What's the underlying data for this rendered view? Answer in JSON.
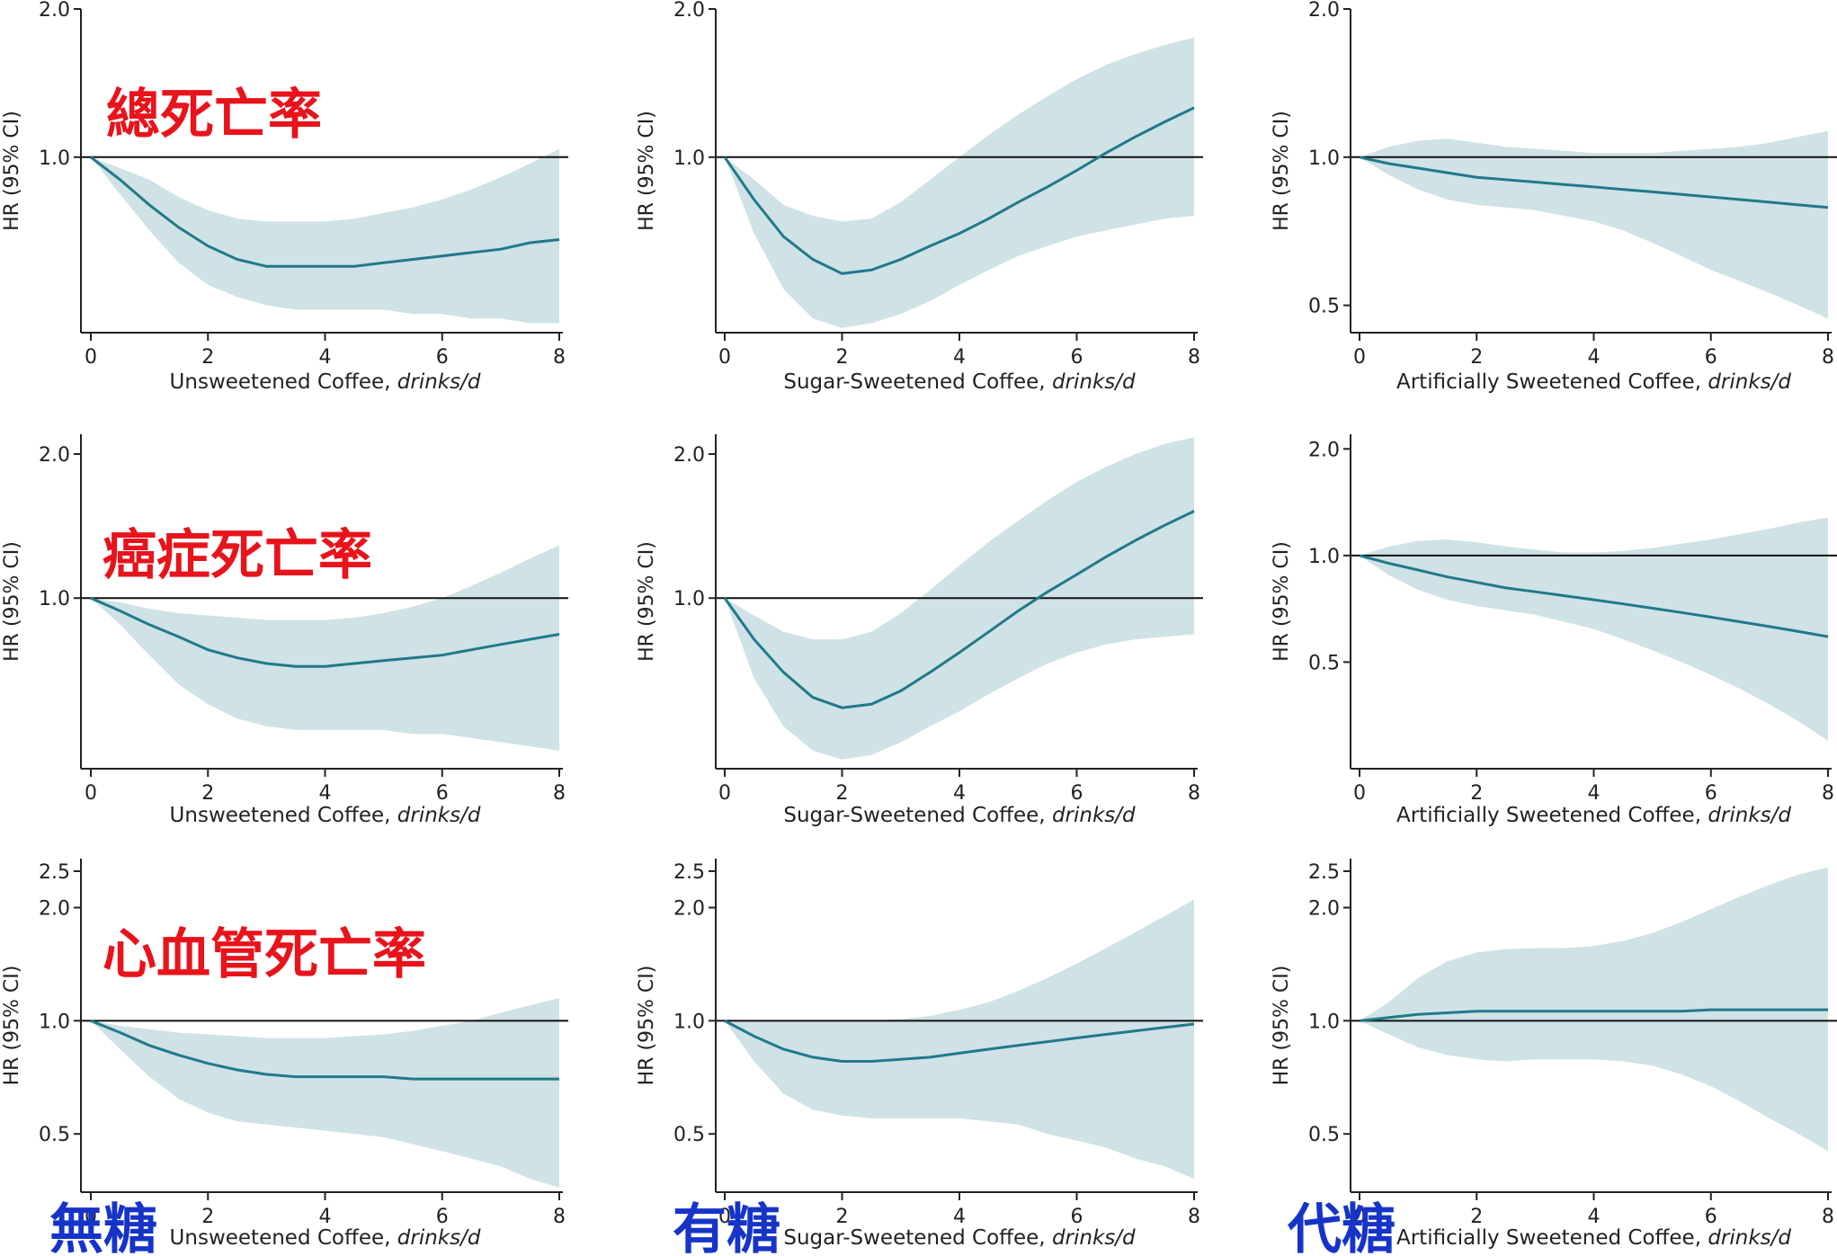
{
  "chart_data": [
    {
      "type": "area",
      "row": 0,
      "col": 0,
      "xlabel": "Unsweetened Coffee, ",
      "xunit": "drinks/d",
      "ylabel": "HR (95% CI)",
      "xlim": [
        0,
        8
      ],
      "ylim": [
        0.44,
        2.0
      ],
      "xticks": [
        0,
        2,
        4,
        6,
        8
      ],
      "yticks": [
        1.0,
        2.0
      ],
      "reference": 1.0,
      "x": [
        0,
        0.5,
        1,
        1.5,
        2,
        2.5,
        3,
        3.5,
        4,
        4.5,
        5,
        5.5,
        6,
        6.5,
        7,
        7.5,
        8
      ],
      "estimate": [
        1.0,
        0.9,
        0.8,
        0.72,
        0.66,
        0.62,
        0.6,
        0.6,
        0.6,
        0.6,
        0.61,
        0.62,
        0.63,
        0.64,
        0.65,
        0.67,
        0.68
      ],
      "lower": [
        1.0,
        0.84,
        0.71,
        0.61,
        0.55,
        0.52,
        0.5,
        0.49,
        0.49,
        0.49,
        0.49,
        0.48,
        0.48,
        0.47,
        0.47,
        0.46,
        0.46
      ],
      "upper": [
        1.0,
        0.95,
        0.9,
        0.83,
        0.78,
        0.75,
        0.74,
        0.74,
        0.74,
        0.75,
        0.77,
        0.79,
        0.82,
        0.86,
        0.91,
        0.97,
        1.04
      ]
    },
    {
      "type": "area",
      "row": 0,
      "col": 1,
      "xlabel": "Sugar-Sweetened Coffee, ",
      "xunit": "drinks/d",
      "ylabel": "HR (95% CI)",
      "xlim": [
        0,
        8
      ],
      "ylim": [
        0.44,
        2.0
      ],
      "xticks": [
        0,
        2,
        4,
        6,
        8
      ],
      "yticks": [
        1.0,
        2.0
      ],
      "reference": 1.0,
      "x": [
        0,
        0.5,
        1,
        1.5,
        2,
        2.5,
        3,
        3.5,
        4,
        4.5,
        5,
        5.5,
        6,
        6.5,
        7,
        7.5,
        8
      ],
      "estimate": [
        1.0,
        0.82,
        0.69,
        0.62,
        0.58,
        0.59,
        0.62,
        0.66,
        0.7,
        0.75,
        0.81,
        0.87,
        0.94,
        1.02,
        1.1,
        1.18,
        1.26
      ],
      "lower": [
        1.0,
        0.7,
        0.54,
        0.47,
        0.45,
        0.46,
        0.48,
        0.51,
        0.55,
        0.59,
        0.63,
        0.66,
        0.69,
        0.71,
        0.73,
        0.75,
        0.76
      ],
      "upper": [
        1.0,
        0.9,
        0.8,
        0.76,
        0.74,
        0.75,
        0.81,
        0.9,
        1.0,
        1.11,
        1.22,
        1.33,
        1.44,
        1.54,
        1.62,
        1.69,
        1.75
      ]
    },
    {
      "type": "area",
      "row": 0,
      "col": 2,
      "xlabel": "Artificially Sweetened Coffee, ",
      "xunit": "drinks/d",
      "ylabel": "HR (95% CI)",
      "xlim": [
        0,
        8
      ],
      "ylim": [
        0.44,
        2.0
      ],
      "xticks": [
        0,
        2,
        4,
        6,
        8
      ],
      "yticks": [
        0.5,
        1.0,
        2.0
      ],
      "reference": 1.0,
      "x": [
        0,
        0.5,
        1,
        1.5,
        2,
        2.5,
        3,
        3.5,
        4,
        4.5,
        5,
        5.5,
        6,
        6.5,
        7,
        7.5,
        8
      ],
      "estimate": [
        1.0,
        0.97,
        0.95,
        0.93,
        0.91,
        0.9,
        0.89,
        0.88,
        0.87,
        0.86,
        0.85,
        0.84,
        0.83,
        0.82,
        0.81,
        0.8,
        0.79
      ],
      "lower": [
        1.0,
        0.92,
        0.86,
        0.82,
        0.8,
        0.79,
        0.78,
        0.76,
        0.74,
        0.71,
        0.67,
        0.63,
        0.59,
        0.56,
        0.53,
        0.5,
        0.47
      ],
      "upper": [
        1.0,
        1.05,
        1.08,
        1.09,
        1.07,
        1.05,
        1.04,
        1.03,
        1.02,
        1.02,
        1.02,
        1.03,
        1.04,
        1.05,
        1.07,
        1.1,
        1.13
      ]
    },
    {
      "type": "area",
      "row": 1,
      "col": 0,
      "xlabel": "Unsweetened Coffee, ",
      "xunit": "drinks/d",
      "ylabel": "HR (95% CI)",
      "xlim": [
        0,
        8
      ],
      "ylim": [
        0.44,
        2.2
      ],
      "xticks": [
        0,
        2,
        4,
        6,
        8
      ],
      "yticks": [
        1.0,
        2.0
      ],
      "reference": 1.0,
      "x": [
        0,
        0.5,
        1,
        1.5,
        2,
        2.5,
        3,
        3.5,
        4,
        4.5,
        5,
        5.5,
        6,
        6.5,
        7,
        7.5,
        8
      ],
      "estimate": [
        1.0,
        0.94,
        0.88,
        0.83,
        0.78,
        0.75,
        0.73,
        0.72,
        0.72,
        0.73,
        0.74,
        0.75,
        0.76,
        0.78,
        0.8,
        0.82,
        0.84
      ],
      "lower": [
        1.0,
        0.88,
        0.76,
        0.66,
        0.6,
        0.56,
        0.54,
        0.53,
        0.53,
        0.53,
        0.53,
        0.52,
        0.52,
        0.51,
        0.5,
        0.49,
        0.48
      ],
      "upper": [
        1.0,
        0.98,
        0.95,
        0.93,
        0.92,
        0.91,
        0.9,
        0.9,
        0.9,
        0.91,
        0.93,
        0.96,
        1.0,
        1.06,
        1.13,
        1.21,
        1.29
      ]
    },
    {
      "type": "area",
      "row": 1,
      "col": 1,
      "xlabel": "Sugar-Sweetened Coffee, ",
      "xunit": "drinks/d",
      "ylabel": "HR (95% CI)",
      "xlim": [
        0,
        8
      ],
      "ylim": [
        0.44,
        2.2
      ],
      "xticks": [
        0,
        2,
        4,
        6,
        8
      ],
      "yticks": [
        1.0,
        2.0
      ],
      "reference": 1.0,
      "x": [
        0,
        0.5,
        1,
        1.5,
        2,
        2.5,
        3,
        3.5,
        4,
        4.5,
        5,
        5.5,
        6,
        6.5,
        7,
        7.5,
        8
      ],
      "estimate": [
        1.0,
        0.82,
        0.7,
        0.62,
        0.59,
        0.6,
        0.64,
        0.7,
        0.77,
        0.85,
        0.94,
        1.03,
        1.12,
        1.22,
        1.32,
        1.42,
        1.52
      ],
      "lower": [
        1.0,
        0.68,
        0.54,
        0.48,
        0.46,
        0.47,
        0.5,
        0.54,
        0.58,
        0.63,
        0.68,
        0.73,
        0.77,
        0.8,
        0.82,
        0.83,
        0.84
      ],
      "upper": [
        1.0,
        0.92,
        0.85,
        0.82,
        0.82,
        0.85,
        0.93,
        1.04,
        1.17,
        1.31,
        1.45,
        1.6,
        1.75,
        1.88,
        2.0,
        2.1,
        2.17
      ]
    },
    {
      "type": "area",
      "row": 1,
      "col": 2,
      "xlabel": "Artificially Sweetened Coffee, ",
      "xunit": "drinks/d",
      "ylabel": "HR (95% CI)",
      "xlim": [
        0,
        8
      ],
      "ylim": [
        0.25,
        2.2
      ],
      "xticks": [
        0,
        2,
        4,
        6,
        8
      ],
      "yticks": [
        0.5,
        1.0,
        2.0
      ],
      "reference": 1.0,
      "x": [
        0,
        0.5,
        1,
        1.5,
        2,
        2.5,
        3,
        3.5,
        4,
        4.5,
        5,
        5.5,
        6,
        6.5,
        7,
        7.5,
        8
      ],
      "estimate": [
        1.0,
        0.95,
        0.91,
        0.87,
        0.84,
        0.81,
        0.79,
        0.77,
        0.75,
        0.73,
        0.71,
        0.69,
        0.67,
        0.65,
        0.63,
        0.61,
        0.59
      ],
      "lower": [
        1.0,
        0.88,
        0.8,
        0.75,
        0.72,
        0.7,
        0.68,
        0.65,
        0.62,
        0.58,
        0.54,
        0.5,
        0.46,
        0.42,
        0.38,
        0.34,
        0.3
      ],
      "upper": [
        1.0,
        1.06,
        1.1,
        1.11,
        1.09,
        1.06,
        1.04,
        1.02,
        1.02,
        1.03,
        1.05,
        1.08,
        1.11,
        1.15,
        1.19,
        1.24,
        1.28
      ]
    },
    {
      "type": "area",
      "row": 2,
      "col": 0,
      "xlabel": "Unsweetened Coffee, ",
      "xunit": "drinks/d",
      "ylabel": "HR (95% CI)",
      "xlim": [
        0,
        8
      ],
      "ylim": [
        0.35,
        2.7
      ],
      "xticks": [
        0,
        2,
        4,
        6,
        8
      ],
      "yticks": [
        0.5,
        1.0,
        2.0,
        2.5
      ],
      "reference": 1.0,
      "x": [
        0,
        0.5,
        1,
        1.5,
        2,
        2.5,
        3,
        3.5,
        4,
        4.5,
        5,
        5.5,
        6,
        6.5,
        7,
        7.5,
        8
      ],
      "estimate": [
        1.0,
        0.93,
        0.86,
        0.81,
        0.77,
        0.74,
        0.72,
        0.71,
        0.71,
        0.71,
        0.71,
        0.7,
        0.7,
        0.7,
        0.7,
        0.7,
        0.7
      ],
      "lower": [
        1.0,
        0.84,
        0.71,
        0.62,
        0.57,
        0.54,
        0.53,
        0.52,
        0.51,
        0.5,
        0.49,
        0.47,
        0.45,
        0.43,
        0.41,
        0.38,
        0.36
      ],
      "upper": [
        1.0,
        0.97,
        0.95,
        0.93,
        0.92,
        0.91,
        0.9,
        0.9,
        0.9,
        0.91,
        0.92,
        0.94,
        0.97,
        1.0,
        1.05,
        1.1,
        1.15
      ]
    },
    {
      "type": "area",
      "row": 2,
      "col": 1,
      "xlabel": "Sugar-Sweetened Coffee, ",
      "xunit": "drinks/d",
      "ylabel": "HR (95% CI)",
      "xlim": [
        0,
        8
      ],
      "ylim": [
        0.35,
        2.7
      ],
      "xticks": [
        0,
        2,
        4,
        6,
        8
      ],
      "yticks": [
        0.5,
        1.0,
        2.0,
        2.5
      ],
      "reference": 1.0,
      "x": [
        0,
        0.5,
        1,
        1.5,
        2,
        2.5,
        3,
        3.5,
        4,
        4.5,
        5,
        5.5,
        6,
        6.5,
        7,
        7.5,
        8
      ],
      "estimate": [
        1.0,
        0.91,
        0.84,
        0.8,
        0.78,
        0.78,
        0.79,
        0.8,
        0.82,
        0.84,
        0.86,
        0.88,
        0.9,
        0.92,
        0.94,
        0.96,
        0.98
      ],
      "lower": [
        1.0,
        0.78,
        0.64,
        0.58,
        0.56,
        0.55,
        0.55,
        0.55,
        0.55,
        0.54,
        0.53,
        0.5,
        0.48,
        0.46,
        0.43,
        0.41,
        0.38
      ],
      "upper": [
        1.0,
        1.0,
        1.0,
        1.0,
        1.0,
        1.0,
        1.01,
        1.03,
        1.07,
        1.12,
        1.2,
        1.3,
        1.42,
        1.56,
        1.72,
        1.9,
        2.1
      ]
    },
    {
      "type": "area",
      "row": 2,
      "col": 2,
      "xlabel": "Artificially Sweetened Coffee, ",
      "xunit": "drinks/d",
      "ylabel": "HR (95% CI)",
      "xlim": [
        0,
        8
      ],
      "ylim": [
        0.35,
        2.7
      ],
      "xticks": [
        0,
        2,
        4,
        6,
        8
      ],
      "yticks": [
        0.5,
        1.0,
        2.0,
        2.5
      ],
      "reference": 1.0,
      "x": [
        0,
        0.5,
        1,
        1.5,
        2,
        2.5,
        3,
        3.5,
        4,
        4.5,
        5,
        5.5,
        6,
        6.5,
        7,
        7.5,
        8
      ],
      "estimate": [
        1.0,
        1.02,
        1.04,
        1.05,
        1.06,
        1.06,
        1.06,
        1.06,
        1.06,
        1.06,
        1.06,
        1.06,
        1.07,
        1.07,
        1.07,
        1.07,
        1.07
      ],
      "lower": [
        1.0,
        0.92,
        0.85,
        0.81,
        0.79,
        0.78,
        0.79,
        0.79,
        0.79,
        0.78,
        0.76,
        0.72,
        0.67,
        0.61,
        0.55,
        0.5,
        0.45
      ],
      "upper": [
        1.0,
        1.12,
        1.3,
        1.44,
        1.52,
        1.55,
        1.56,
        1.56,
        1.58,
        1.63,
        1.71,
        1.83,
        1.98,
        2.14,
        2.3,
        2.45,
        2.56
      ]
    }
  ],
  "annotations": {
    "row_labels": [
      "總死亡率",
      "癌症死亡率",
      "心血管死亡率"
    ],
    "column_labels": [
      "無糖",
      "有糖",
      "代糖"
    ]
  }
}
